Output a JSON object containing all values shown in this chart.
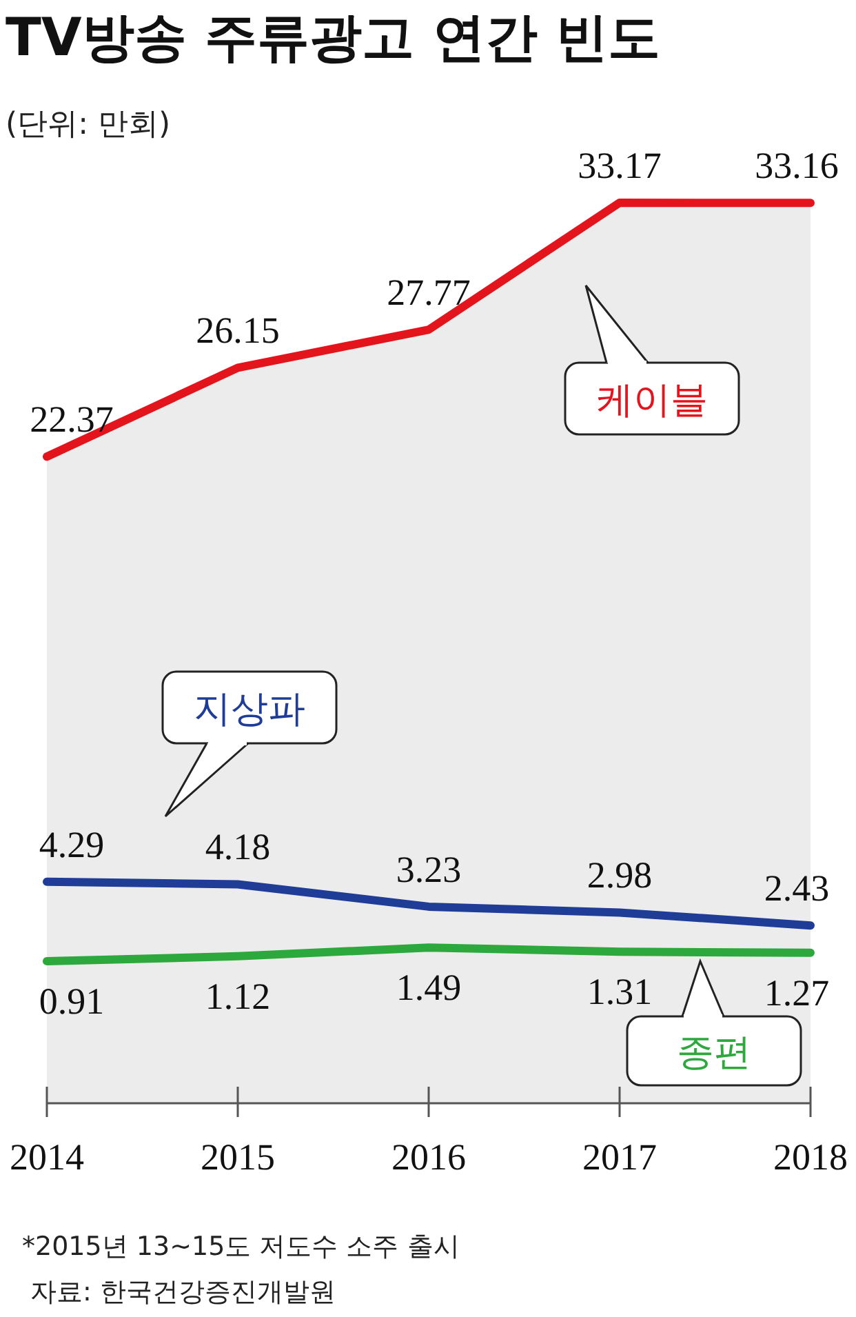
{
  "chart_data": {
    "type": "line",
    "title": "TV방송 주류광고 연간 빈도",
    "subtitle": "(단위: 만회)",
    "categories": [
      "2014",
      "2015",
      "2016",
      "2017",
      "2018"
    ],
    "series": [
      {
        "name": "케이블",
        "color": "#e3141c",
        "values": [
          22.37,
          26.15,
          27.77,
          33.17,
          33.16
        ]
      },
      {
        "name": "지상파",
        "color": "#1f3d96",
        "values": [
          4.29,
          4.18,
          3.23,
          2.98,
          2.43
        ]
      },
      {
        "name": "종편",
        "color": "#2ca83c",
        "values": [
          0.91,
          1.12,
          1.49,
          1.31,
          1.27
        ]
      }
    ],
    "data_labels": true,
    "marker": "none",
    "line_style": "solid",
    "annotations": [
      "*2015년 13~15도 저도수 소주 출시",
      "자료: 한국건강증진개발원"
    ]
  }
}
